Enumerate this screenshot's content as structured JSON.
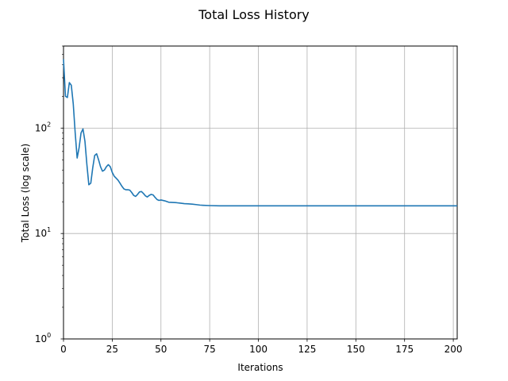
{
  "chart_data": {
    "type": "line",
    "title": "Total Loss History",
    "xlabel": "Iterations",
    "ylabel": "Total Loss (log scale)",
    "xlim": [
      0,
      202
    ],
    "ylim": [
      1,
      600
    ],
    "yscale": "log",
    "grid": true,
    "x_ticks": [
      0,
      25,
      50,
      75,
      100,
      125,
      150,
      175,
      200
    ],
    "y_ticks": [
      {
        "value": 1,
        "base": "10",
        "exp": "0"
      },
      {
        "value": 10,
        "base": "10",
        "exp": "1"
      },
      {
        "value": 100,
        "base": "10",
        "exp": "2"
      }
    ],
    "series": [
      {
        "color": "#1f77b4",
        "x": [
          0,
          1,
          2,
          3,
          4,
          5,
          6,
          7,
          8,
          9,
          10,
          11,
          12,
          13,
          14,
          15,
          16,
          17,
          18,
          19,
          20,
          21,
          22,
          23,
          24,
          25,
          26,
          27,
          28,
          29,
          30,
          31,
          32,
          33,
          34,
          35,
          36,
          37,
          38,
          39,
          40,
          41,
          42,
          43,
          44,
          45,
          46,
          47,
          48,
          49,
          50,
          52,
          54,
          56,
          58,
          60,
          62,
          64,
          66,
          68,
          70,
          72,
          75,
          80,
          85,
          90,
          100,
          110,
          125,
          150,
          175,
          202
        ],
        "y": [
          450,
          200,
          195,
          270,
          255,
          170,
          90,
          52,
          65,
          90,
          98,
          75,
          45,
          29,
          30,
          42,
          55,
          57,
          50,
          43,
          39,
          40,
          43,
          45,
          43,
          38,
          35,
          33.5,
          32,
          30,
          28,
          26.5,
          26,
          26,
          25.8,
          24.5,
          23,
          22.5,
          23.5,
          24.8,
          25,
          24,
          22.8,
          22.2,
          23,
          23.5,
          23.2,
          22,
          21,
          20.6,
          20.8,
          20.4,
          19.8,
          19.7,
          19.6,
          19.4,
          19.2,
          19.1,
          19.0,
          18.8,
          18.6,
          18.5,
          18.4,
          18.3,
          18.3,
          18.3,
          18.3,
          18.3,
          18.3,
          18.3,
          18.3,
          18.3
        ]
      }
    ]
  }
}
